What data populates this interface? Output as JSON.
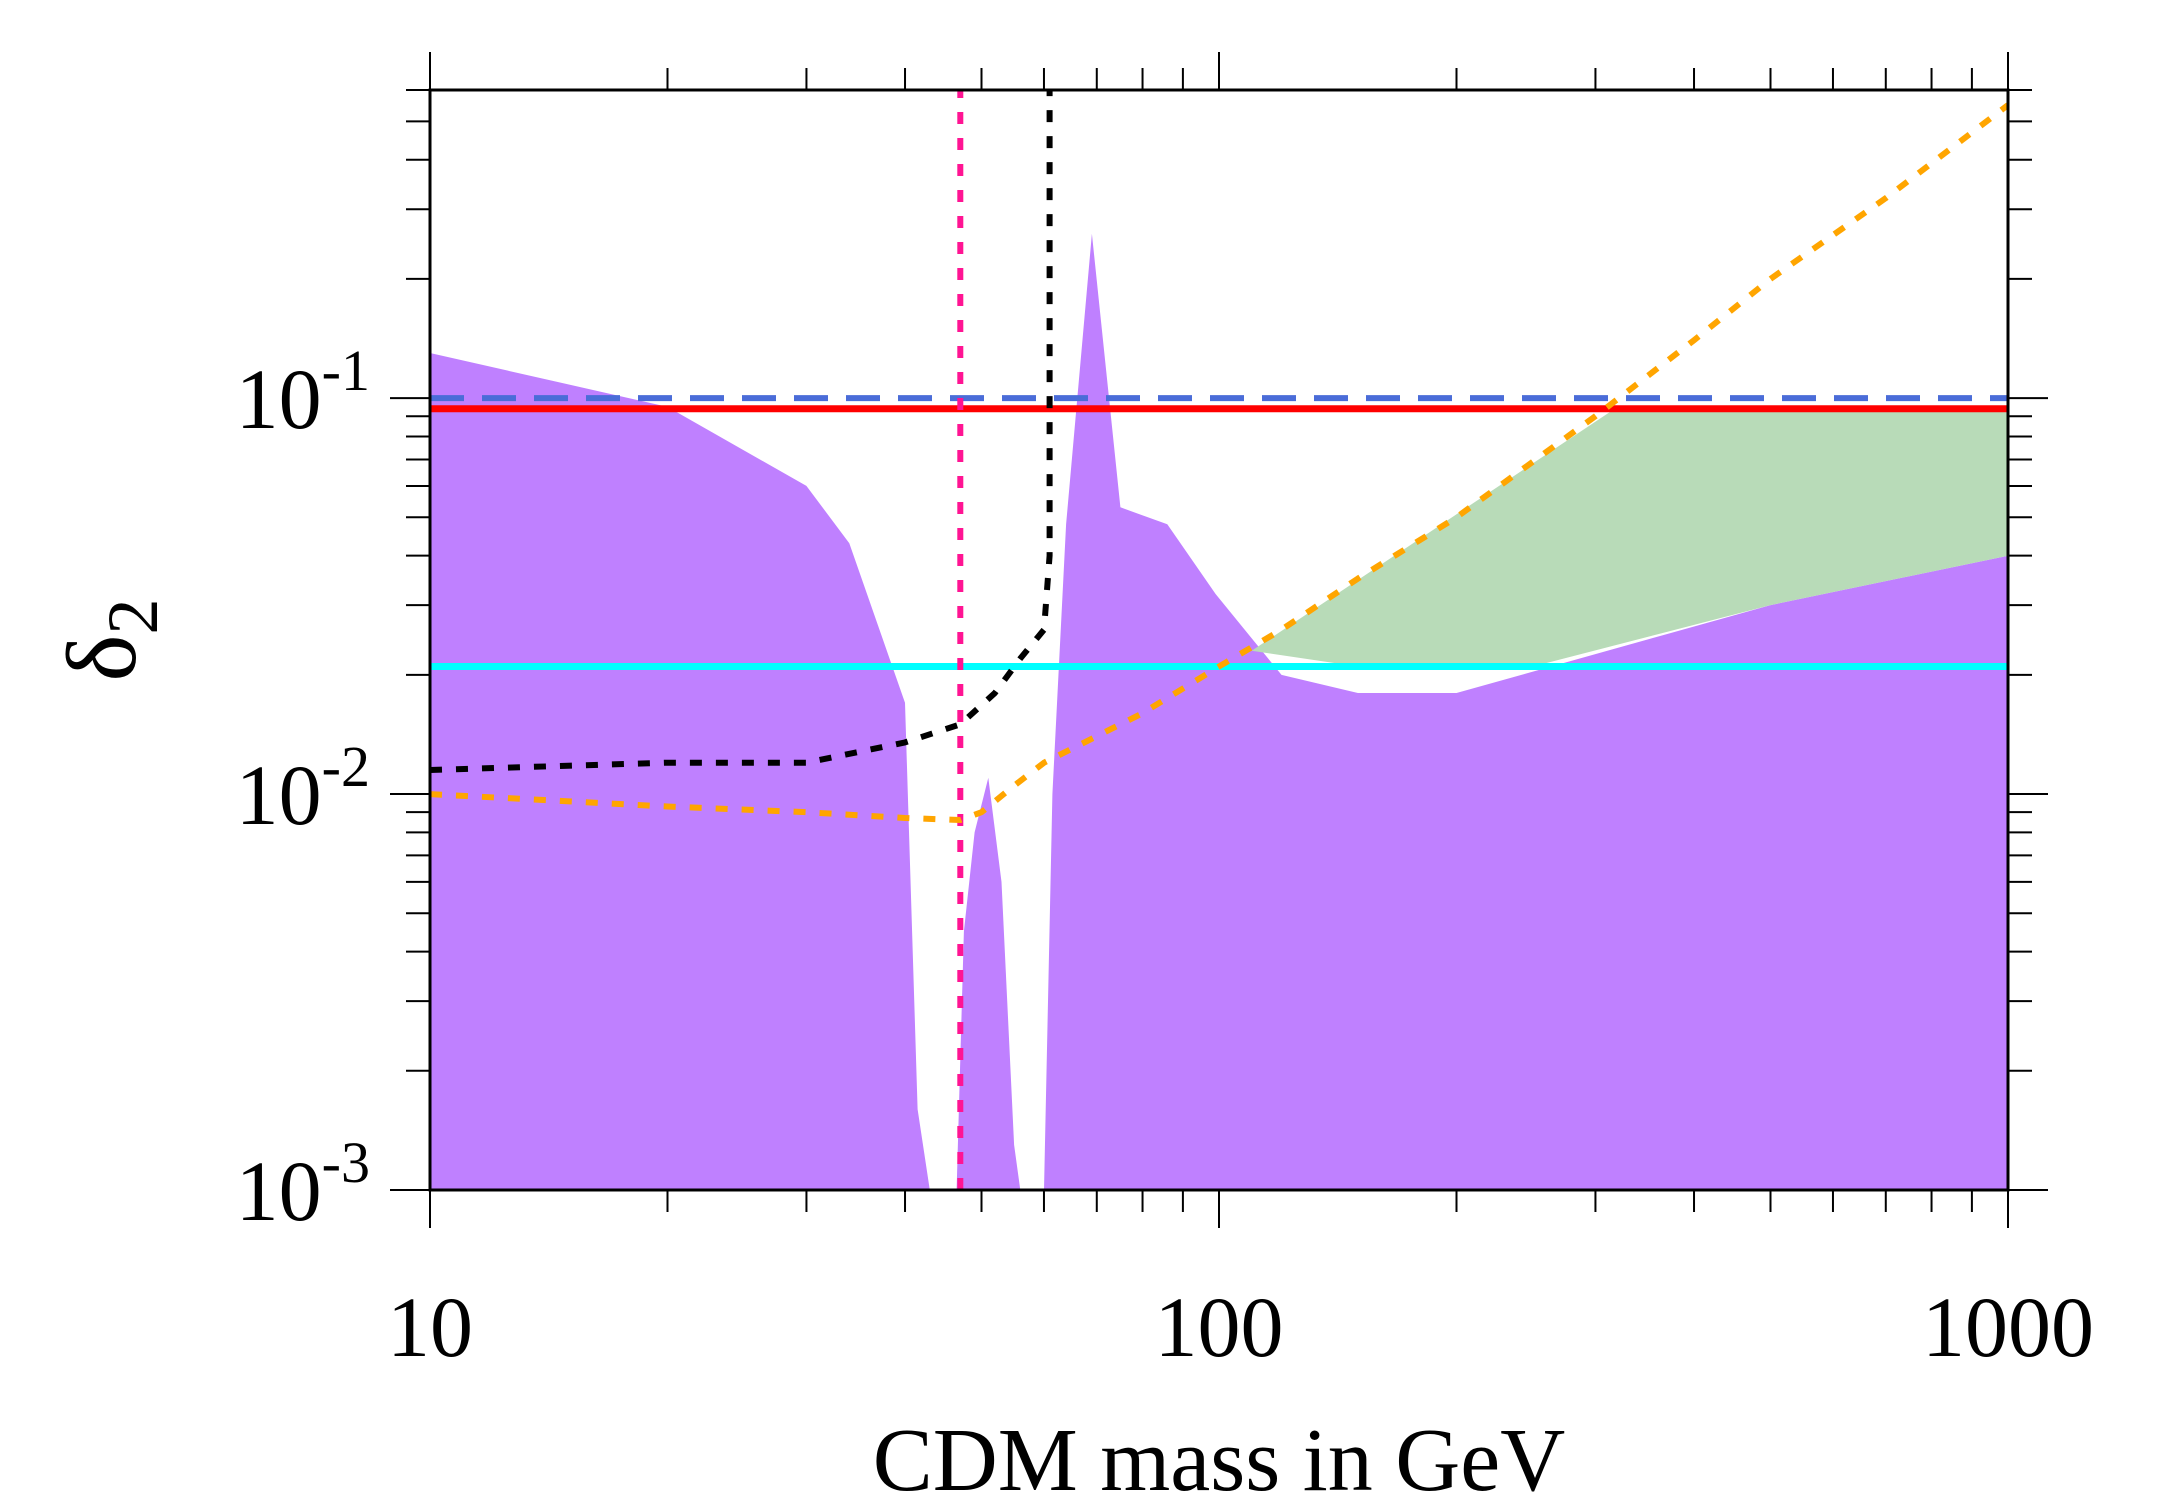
{
  "chart_data": {
    "type": "area",
    "title": "",
    "xlabel": "CDM mass in GeV",
    "ylabel": "δ₂",
    "ylabel_base": "δ",
    "ylabel_sub": "2",
    "xscale": "log",
    "yscale": "log",
    "xlim": [
      10,
      1000
    ],
    "ylim": [
      0.001,
      0.6
    ],
    "grid": false,
    "legend": "none",
    "xticks": [
      {
        "value": 10,
        "label": "10"
      },
      {
        "value": 100,
        "label": "100"
      },
      {
        "value": 1000,
        "label": "1000"
      }
    ],
    "yticks": [
      {
        "value": 0.001,
        "base": "10",
        "exp": "-3"
      },
      {
        "value": 0.01,
        "base": "10",
        "exp": "-2"
      },
      {
        "value": 0.1,
        "base": "10",
        "exp": "-1"
      }
    ],
    "regions": [
      {
        "name": "allowed-purple",
        "color": "#bf80ff",
        "upper": [
          [
            10,
            0.13
          ],
          [
            20,
            0.095
          ],
          [
            30,
            0.06
          ],
          [
            34,
            0.043
          ],
          [
            40,
            0.017
          ],
          [
            41.5,
            0.0016
          ],
          [
            43,
            0.001
          ]
        ],
        "islands": [
          [
            [
              46.5,
              0.001
            ],
            [
              47.5,
              0.0045
            ],
            [
              49,
              0.008
            ],
            [
              51,
              0.011
            ],
            [
              53,
              0.006
            ],
            [
              55,
              0.0013
            ],
            [
              56,
              0.001
            ]
          ],
          [
            [
              60,
              0.001
            ],
            [
              61.5,
              0.01
            ],
            [
              64,
              0.048
            ],
            [
              69,
              0.26
            ],
            [
              75,
              0.053
            ],
            [
              86,
              0.048
            ],
            [
              99,
              0.032
            ],
            [
              120,
              0.02
            ],
            [
              150,
              0.018
            ],
            [
              200,
              0.018
            ],
            [
              500,
              0.03
            ],
            [
              1000,
              0.04
            ],
            [
              1000,
              0.001
            ]
          ]
        ]
      },
      {
        "name": "allowed-green",
        "color": "#b8dbb8",
        "polygon": [
          [
            110,
            0.023
          ],
          [
            320,
            0.095
          ],
          [
            1000,
            0.095
          ],
          [
            1000,
            0.04
          ],
          [
            500,
            0.03
          ],
          [
            250,
            0.021
          ],
          [
            150,
            0.021
          ]
        ]
      }
    ],
    "series": [
      {
        "name": "blue-dashed-limit",
        "color": "#4a6cd8",
        "style": "dashed",
        "x": [
          10,
          1000
        ],
        "y": [
          0.1,
          0.1
        ]
      },
      {
        "name": "red-limit",
        "color": "#ff0000",
        "style": "solid",
        "x": [
          10,
          1000
        ],
        "y": [
          0.094,
          0.094
        ]
      },
      {
        "name": "cyan-limit",
        "color": "#00ffff",
        "style": "solid",
        "x": [
          10,
          1000
        ],
        "y": [
          0.021,
          0.021
        ]
      },
      {
        "name": "magenta-vertical",
        "color": "#ff1493",
        "style": "dotted",
        "x": [
          47,
          47
        ],
        "y": [
          0.001,
          0.6
        ]
      },
      {
        "name": "black-dotted",
        "color": "#000000",
        "style": "dotted",
        "x": [
          10,
          20,
          30,
          40,
          47,
          52,
          56,
          60,
          61,
          61,
          61
        ],
        "y": [
          0.0115,
          0.012,
          0.012,
          0.0135,
          0.015,
          0.018,
          0.022,
          0.026,
          0.04,
          0.1,
          0.6
        ]
      },
      {
        "name": "orange-dotted",
        "color": "#ffa500",
        "style": "dotted",
        "x": [
          10,
          20,
          30,
          40,
          47,
          50,
          55,
          60,
          70,
          80,
          100,
          120,
          150,
          200,
          300,
          400,
          500,
          700,
          1000
        ],
        "y": [
          0.01,
          0.0093,
          0.009,
          0.0087,
          0.0086,
          0.009,
          0.0105,
          0.012,
          0.014,
          0.016,
          0.021,
          0.026,
          0.035,
          0.05,
          0.09,
          0.14,
          0.2,
          0.32,
          0.55
        ]
      }
    ]
  }
}
